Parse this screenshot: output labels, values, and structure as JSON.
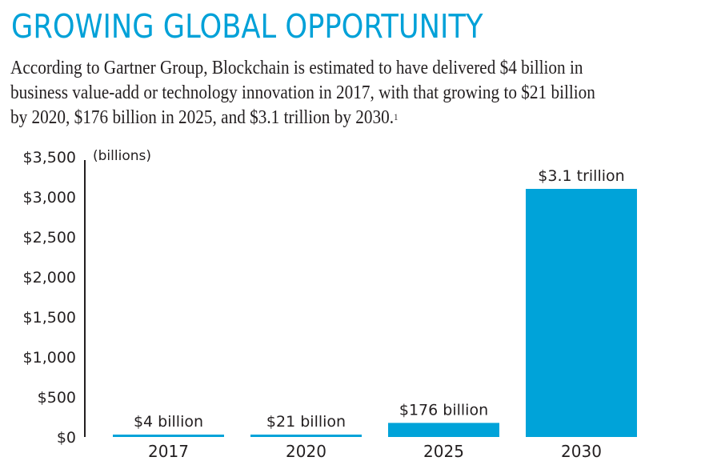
{
  "header": {
    "title": "GROWING GLOBAL OPPORTUNITY",
    "description": "According to Gartner Group, Blockchain is estimated to have delivered $4 billion in business value-add or technology innovation in 2017, with that growing to $21 billion by 2020, $176 billion in 2025, and $3.1 trillion by 2030.",
    "description_lines": [
      "According to Gartner Group, Blockchain is estimated to have delivered $4 billion in",
      "business value-add or technology innovation in 2017, with that growing to $21 billion",
      "by 2020, $176 billion in 2025, and $3.1 trillion by 2030."
    ],
    "footnote_marker": "1"
  },
  "colors": {
    "accent": "#00a1d8",
    "bar": "#00a3d9",
    "text": "#231f20",
    "axis": "#231f20"
  },
  "chart_data": {
    "type": "bar",
    "title": "GROWING GLOBAL OPPORTUNITY",
    "xlabel": "",
    "ylabel": "(billions)",
    "unit_label": "(billions)",
    "categories": [
      "2017",
      "2020",
      "2025",
      "2030"
    ],
    "values": [
      4,
      21,
      176,
      3100
    ],
    "data_labels": [
      "$4 billion",
      "$21 billion",
      "$176 billion",
      "$3.1 trillion"
    ],
    "ylim": [
      0,
      3500
    ],
    "yticks": [
      0,
      500,
      1000,
      1500,
      2000,
      2500,
      3000,
      3500
    ],
    "ytick_labels": [
      "$0",
      "$500",
      "$1,000",
      "$1,500",
      "$2,000",
      "$2,500",
      "$3,000",
      "$3,500"
    ],
    "grid": false,
    "legend": "none"
  }
}
